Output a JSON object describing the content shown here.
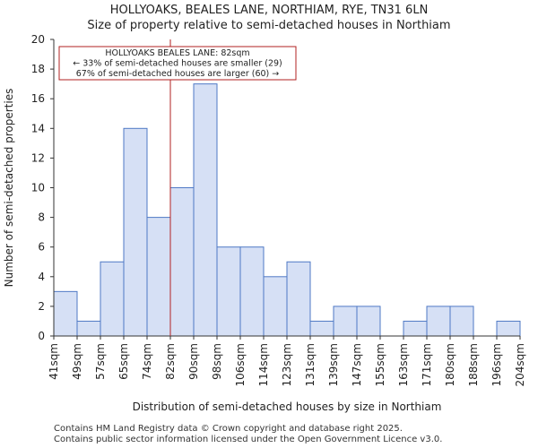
{
  "chart_data": {
    "type": "bar",
    "title": "HOLLYOAKS, BEALES LANE, NORTHIAM, RYE, TN31 6LN",
    "subtitle": "Size of property relative to semi-detached houses in Northiam",
    "xlabel": "Distribution of semi-detached houses by size in Northiam",
    "ylabel": "Number of semi-detached properties",
    "ylim": [
      0,
      20
    ],
    "yticks": [
      0,
      2,
      4,
      6,
      8,
      10,
      12,
      14,
      16,
      18,
      20
    ],
    "bin_edges": [
      "41sqm",
      "49sqm",
      "57sqm",
      "65sqm",
      "74sqm",
      "82sqm",
      "90sqm",
      "98sqm",
      "106sqm",
      "114sqm",
      "123sqm",
      "131sqm",
      "139sqm",
      "147sqm",
      "155sqm",
      "163sqm",
      "171sqm",
      "180sqm",
      "188sqm",
      "196sqm",
      "204sqm"
    ],
    "values": [
      3,
      1,
      5,
      14,
      8,
      10,
      17,
      6,
      6,
      4,
      5,
      1,
      2,
      2,
      0,
      1,
      2,
      2,
      0,
      1
    ],
    "marker": {
      "value_sqm": 82,
      "bin_index": 5,
      "color": "#b22222"
    },
    "annotation": [
      "HOLLYOAKS BEALES LANE: 82sqm",
      "← 33% of semi-detached houses are smaller (29)",
      "67% of semi-detached houses are larger (60) →"
    ],
    "colors": {
      "bar_fill": "#d6e0f5",
      "bar_edge": "#4f79c5",
      "axis": "#333333"
    }
  },
  "footer": {
    "line1": "Contains HM Land Registry data © Crown copyright and database right 2025.",
    "line2": "Contains public sector information licensed under the Open Government Licence v3.0."
  }
}
